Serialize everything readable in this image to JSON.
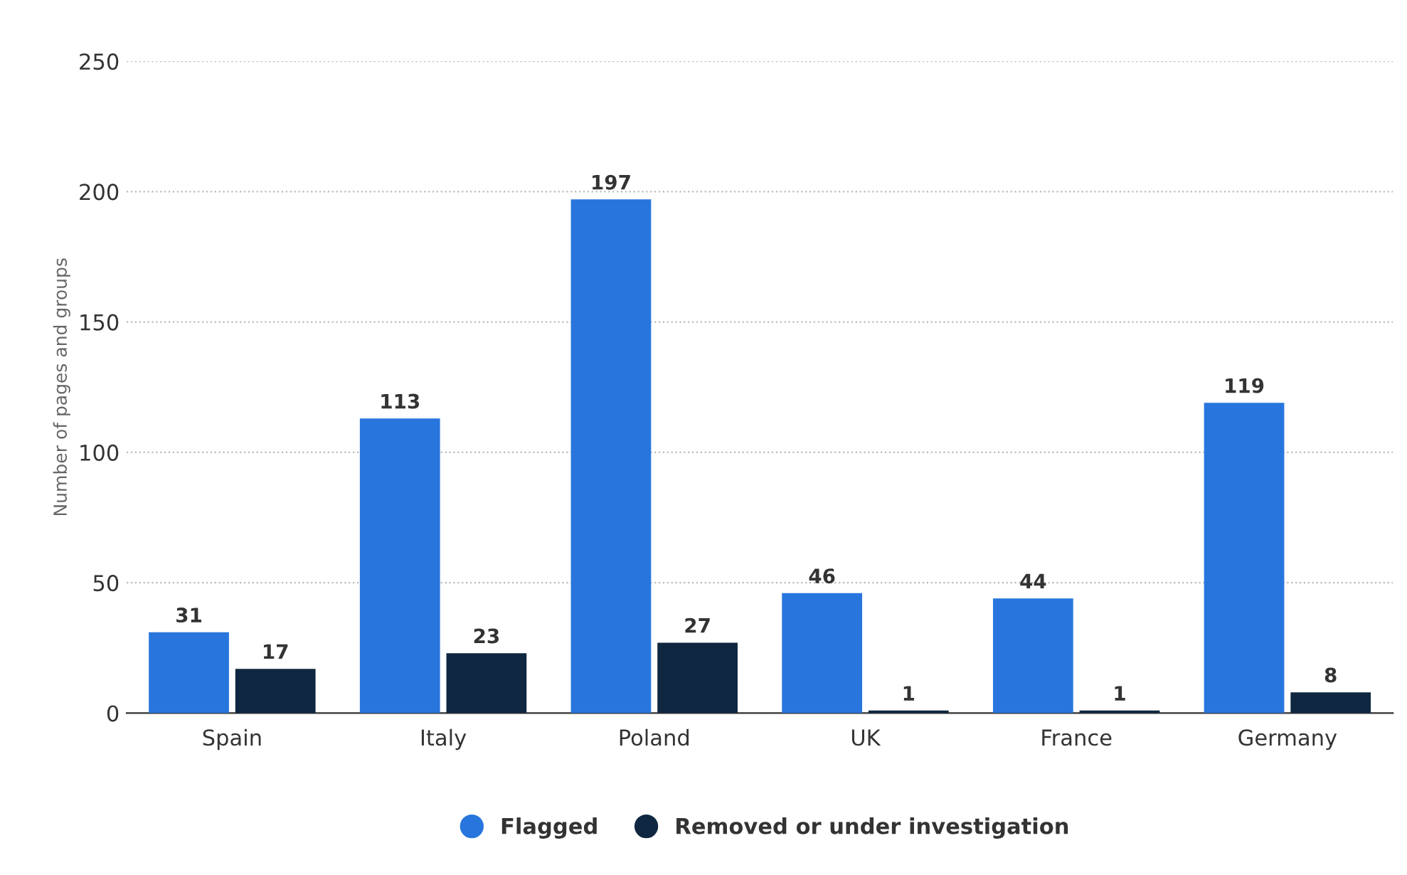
{
  "chart_data": {
    "type": "bar",
    "ylabel": "Number of pages and groups",
    "categories": [
      "Spain",
      "Italy",
      "Poland",
      "UK",
      "France",
      "Germany"
    ],
    "series": [
      {
        "name": "Flagged",
        "color": "#2876dd",
        "values": [
          31,
          113,
          197,
          46,
          44,
          119
        ]
      },
      {
        "name": "Removed or under investigation",
        "color": "#0f2740",
        "values": [
          17,
          23,
          27,
          1,
          1,
          8
        ]
      }
    ],
    "ylim": [
      0,
      250
    ],
    "yticks": [
      0,
      50,
      100,
      150,
      200,
      250
    ],
    "grid": "y",
    "legend": "bottom",
    "data_labels": true
  }
}
